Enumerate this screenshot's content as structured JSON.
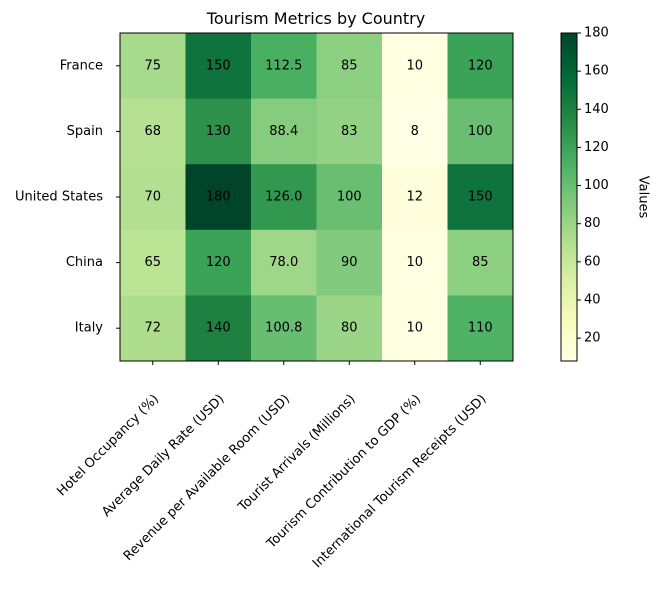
{
  "chart_data": {
    "type": "heatmap",
    "title": "Tourism Metrics by Country",
    "rows": [
      "France",
      "Spain",
      "United States",
      "China",
      "Italy"
    ],
    "columns": [
      "Hotel Occupancy (%)",
      "Average Daily Rate (USD)",
      "Revenue per Available Room (USD)",
      "Tourist Arrivals (Millions)",
      "Tourism Contribution to GDP (%)",
      "International Tourism Receipts (USD)"
    ],
    "values": [
      [
        75,
        150,
        112.5,
        85,
        10,
        120
      ],
      [
        68,
        130,
        88.4,
        83,
        8,
        100
      ],
      [
        70,
        180,
        126.0,
        100,
        12,
        150
      ],
      [
        65,
        120,
        78.0,
        90,
        10,
        85
      ],
      [
        72,
        140,
        100.8,
        80,
        10,
        110
      ]
    ],
    "value_labels": [
      [
        "75",
        "150",
        "112.5",
        "85",
        "10",
        "120"
      ],
      [
        "68",
        "130",
        "88.4",
        "83",
        "8",
        "100"
      ],
      [
        "70",
        "180",
        "126.0",
        "100",
        "12",
        "150"
      ],
      [
        "65",
        "120",
        "78.0",
        "90",
        "10",
        "85"
      ],
      [
        "72",
        "140",
        "100.8",
        "80",
        "10",
        "110"
      ]
    ],
    "colormap": "YlGn",
    "colorbar": {
      "label": "Values",
      "range": [
        8,
        180
      ],
      "ticks": [
        20,
        40,
        60,
        80,
        100,
        120,
        140,
        160,
        180
      ]
    }
  }
}
